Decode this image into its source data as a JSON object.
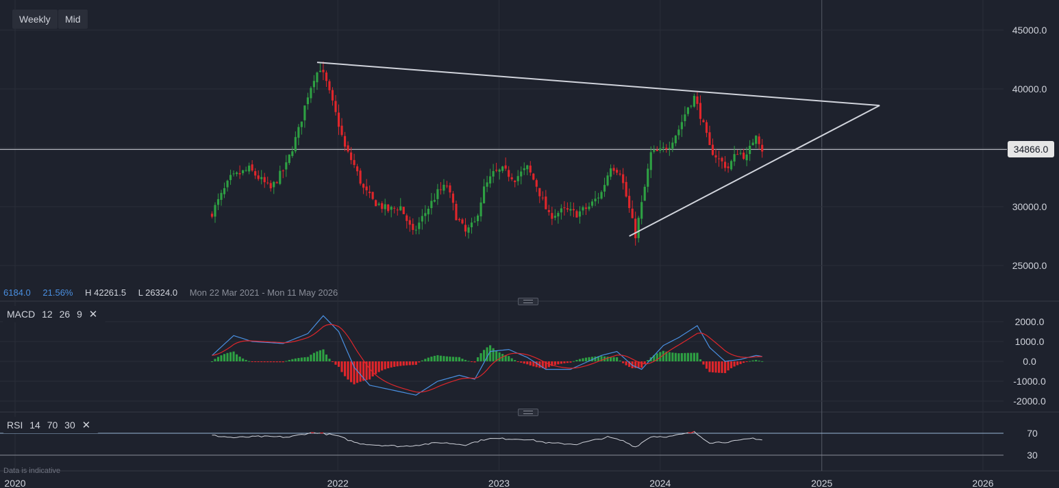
{
  "toolbar": {
    "interval_label": "Weekly",
    "price_type_label": "Mid"
  },
  "stats": {
    "change": "6184.0",
    "change_pct": "21.56%",
    "high": "H 42261.5",
    "low": "L 26324.0",
    "range": "Mon 22 Mar 2021 - Mon 11 May 2026"
  },
  "current_price": "34866.0",
  "macd_label": {
    "name": "MACD",
    "p1": "12",
    "p2": "26",
    "p3": "9"
  },
  "rsi_label": {
    "name": "RSI",
    "p1": "14",
    "p2": "70",
    "p3": "30"
  },
  "disclaimer": "Data is indicative",
  "colors": {
    "background": "#1e222d",
    "grid": "#2a2e39",
    "up": "#2ea043",
    "down": "#e0262b",
    "trendline": "#d1d4dc",
    "macd_line": "#4a90e2",
    "signal_line": "#e0262b",
    "rsi_line": "#d1d4dc"
  },
  "chart_data": {
    "type": "candlestick",
    "x_ticks": [
      "2020",
      "2022",
      "2023",
      "2024",
      "2025",
      "2026"
    ],
    "price_axis": {
      "ticks": [
        45000,
        40000,
        30000,
        25000
      ],
      "tick_labels": [
        "45000.0",
        "40000.0",
        "30000.0",
        "25000.0"
      ]
    },
    "reference_line": 34866,
    "trendlines": [
      {
        "from": [
          "2021-11-15",
          42261
        ],
        "to": [
          "2025-05-12",
          38600
        ]
      },
      {
        "from": [
          "2023-10-23",
          27500
        ],
        "to": [
          "2025-05-12",
          38600
        ]
      }
    ],
    "candle_anchor_closes": [
      [
        "2021-03-22",
        29500
      ],
      [
        "2021-05-03",
        32400
      ],
      [
        "2021-06-14",
        33200
      ],
      [
        "2021-08-02",
        31500
      ],
      [
        "2021-09-06",
        33500
      ],
      [
        "2021-10-04",
        36500
      ],
      [
        "2021-10-25",
        39500
      ],
      [
        "2021-11-08",
        41000
      ],
      [
        "2021-11-22",
        41800
      ],
      [
        "2021-12-06",
        40500
      ],
      [
        "2022-01-03",
        37000
      ],
      [
        "2022-01-17",
        35000
      ],
      [
        "2022-02-07",
        33500
      ],
      [
        "2022-02-28",
        31500
      ],
      [
        "2022-03-21",
        30500
      ],
      [
        "2022-04-25",
        29700
      ],
      [
        "2022-05-23",
        30000
      ],
      [
        "2022-06-20",
        27700
      ],
      [
        "2022-07-18",
        29500
      ],
      [
        "2022-08-15",
        31200
      ],
      [
        "2022-09-05",
        31800
      ],
      [
        "2022-09-26",
        29200
      ],
      [
        "2022-10-17",
        27800
      ],
      [
        "2022-11-07",
        28600
      ],
      [
        "2022-11-28",
        31500
      ],
      [
        "2022-12-19",
        32800
      ],
      [
        "2023-01-09",
        33100
      ],
      [
        "2023-02-06",
        32400
      ],
      [
        "2023-03-06",
        33300
      ],
      [
        "2023-03-27",
        31800
      ],
      [
        "2023-04-24",
        29200
      ],
      [
        "2023-05-29",
        29700
      ],
      [
        "2023-06-26",
        29400
      ],
      [
        "2023-07-24",
        30000
      ],
      [
        "2023-08-21",
        31200
      ],
      [
        "2023-09-11",
        33500
      ],
      [
        "2023-10-02",
        33000
      ],
      [
        "2023-10-23",
        29800
      ],
      [
        "2023-11-06",
        27600
      ],
      [
        "2023-11-20",
        30200
      ],
      [
        "2023-12-11",
        34500
      ],
      [
        "2024-01-01",
        34700
      ],
      [
        "2024-01-22",
        35300
      ],
      [
        "2024-02-12",
        36600
      ],
      [
        "2024-03-04",
        38500
      ],
      [
        "2024-03-18",
        39300
      ],
      [
        "2024-04-01",
        37800
      ],
      [
        "2024-04-22",
        35000
      ],
      [
        "2024-05-13",
        34000
      ],
      [
        "2024-06-03",
        33300
      ],
      [
        "2024-06-24",
        34700
      ],
      [
        "2024-07-15",
        34200
      ],
      [
        "2024-08-05",
        36300
      ],
      [
        "2024-08-19",
        34866
      ]
    ],
    "macd": {
      "params": [
        12,
        26,
        9
      ],
      "axis_ticks": [
        2000,
        1000,
        0,
        -1000,
        -2000
      ],
      "tick_labels": [
        "2000.0",
        "1000.0",
        "0.0",
        "-1000.0",
        "-2000.0"
      ],
      "macd_anchors": [
        [
          "2021-03-22",
          300
        ],
        [
          "2021-05-10",
          1300
        ],
        [
          "2021-06-21",
          1000
        ],
        [
          "2021-08-30",
          900
        ],
        [
          "2021-10-25",
          1400
        ],
        [
          "2021-11-29",
          2300
        ],
        [
          "2022-01-03",
          1500
        ],
        [
          "2022-02-07",
          -300
        ],
        [
          "2022-03-14",
          -1200
        ],
        [
          "2022-04-25",
          -1400
        ],
        [
          "2022-06-27",
          -1700
        ],
        [
          "2022-08-15",
          -1000
        ],
        [
          "2022-10-03",
          -700
        ],
        [
          "2022-11-07",
          -900
        ],
        [
          "2022-12-12",
          500
        ],
        [
          "2023-01-23",
          600
        ],
        [
          "2023-03-06",
          200
        ],
        [
          "2023-04-17",
          -400
        ],
        [
          "2023-06-12",
          -400
        ],
        [
          "2023-08-21",
          300
        ],
        [
          "2023-09-25",
          500
        ],
        [
          "2023-10-30",
          -200
        ],
        [
          "2023-11-20",
          -400
        ],
        [
          "2024-01-08",
          800
        ],
        [
          "2024-02-12",
          1200
        ],
        [
          "2024-03-25",
          1800
        ],
        [
          "2024-04-22",
          700
        ],
        [
          "2024-05-27",
          0
        ],
        [
          "2024-07-01",
          100
        ],
        [
          "2024-08-05",
          300
        ],
        [
          "2024-08-19",
          250
        ]
      ]
    },
    "rsi": {
      "params": [
        14,
        70,
        30
      ],
      "axis_ticks": [
        70,
        30
      ],
      "tick_labels": [
        "70",
        "30"
      ],
      "anchors": [
        [
          "2021-03-22",
          66
        ],
        [
          "2021-05-10",
          62
        ],
        [
          "2021-07-05",
          64
        ],
        [
          "2021-09-13",
          63
        ],
        [
          "2021-10-25",
          70
        ],
        [
          "2021-11-15",
          71
        ],
        [
          "2021-12-27",
          66
        ],
        [
          "2022-02-14",
          52
        ],
        [
          "2022-03-21",
          49
        ],
        [
          "2022-05-30",
          46
        ],
        [
          "2022-08-22",
          53
        ],
        [
          "2022-10-17",
          49
        ],
        [
          "2022-12-05",
          60
        ],
        [
          "2023-01-16",
          60
        ],
        [
          "2023-03-06",
          59
        ],
        [
          "2023-04-24",
          52
        ],
        [
          "2023-06-26",
          50
        ],
        [
          "2023-09-04",
          63
        ],
        [
          "2023-10-09",
          56
        ],
        [
          "2023-11-06",
          45
        ],
        [
          "2023-12-11",
          64
        ],
        [
          "2024-01-22",
          64
        ],
        [
          "2024-03-18",
          72
        ],
        [
          "2024-04-22",
          53
        ],
        [
          "2024-05-27",
          54
        ],
        [
          "2024-06-24",
          56
        ],
        [
          "2024-07-29",
          61
        ],
        [
          "2024-08-19",
          58
        ]
      ]
    }
  }
}
